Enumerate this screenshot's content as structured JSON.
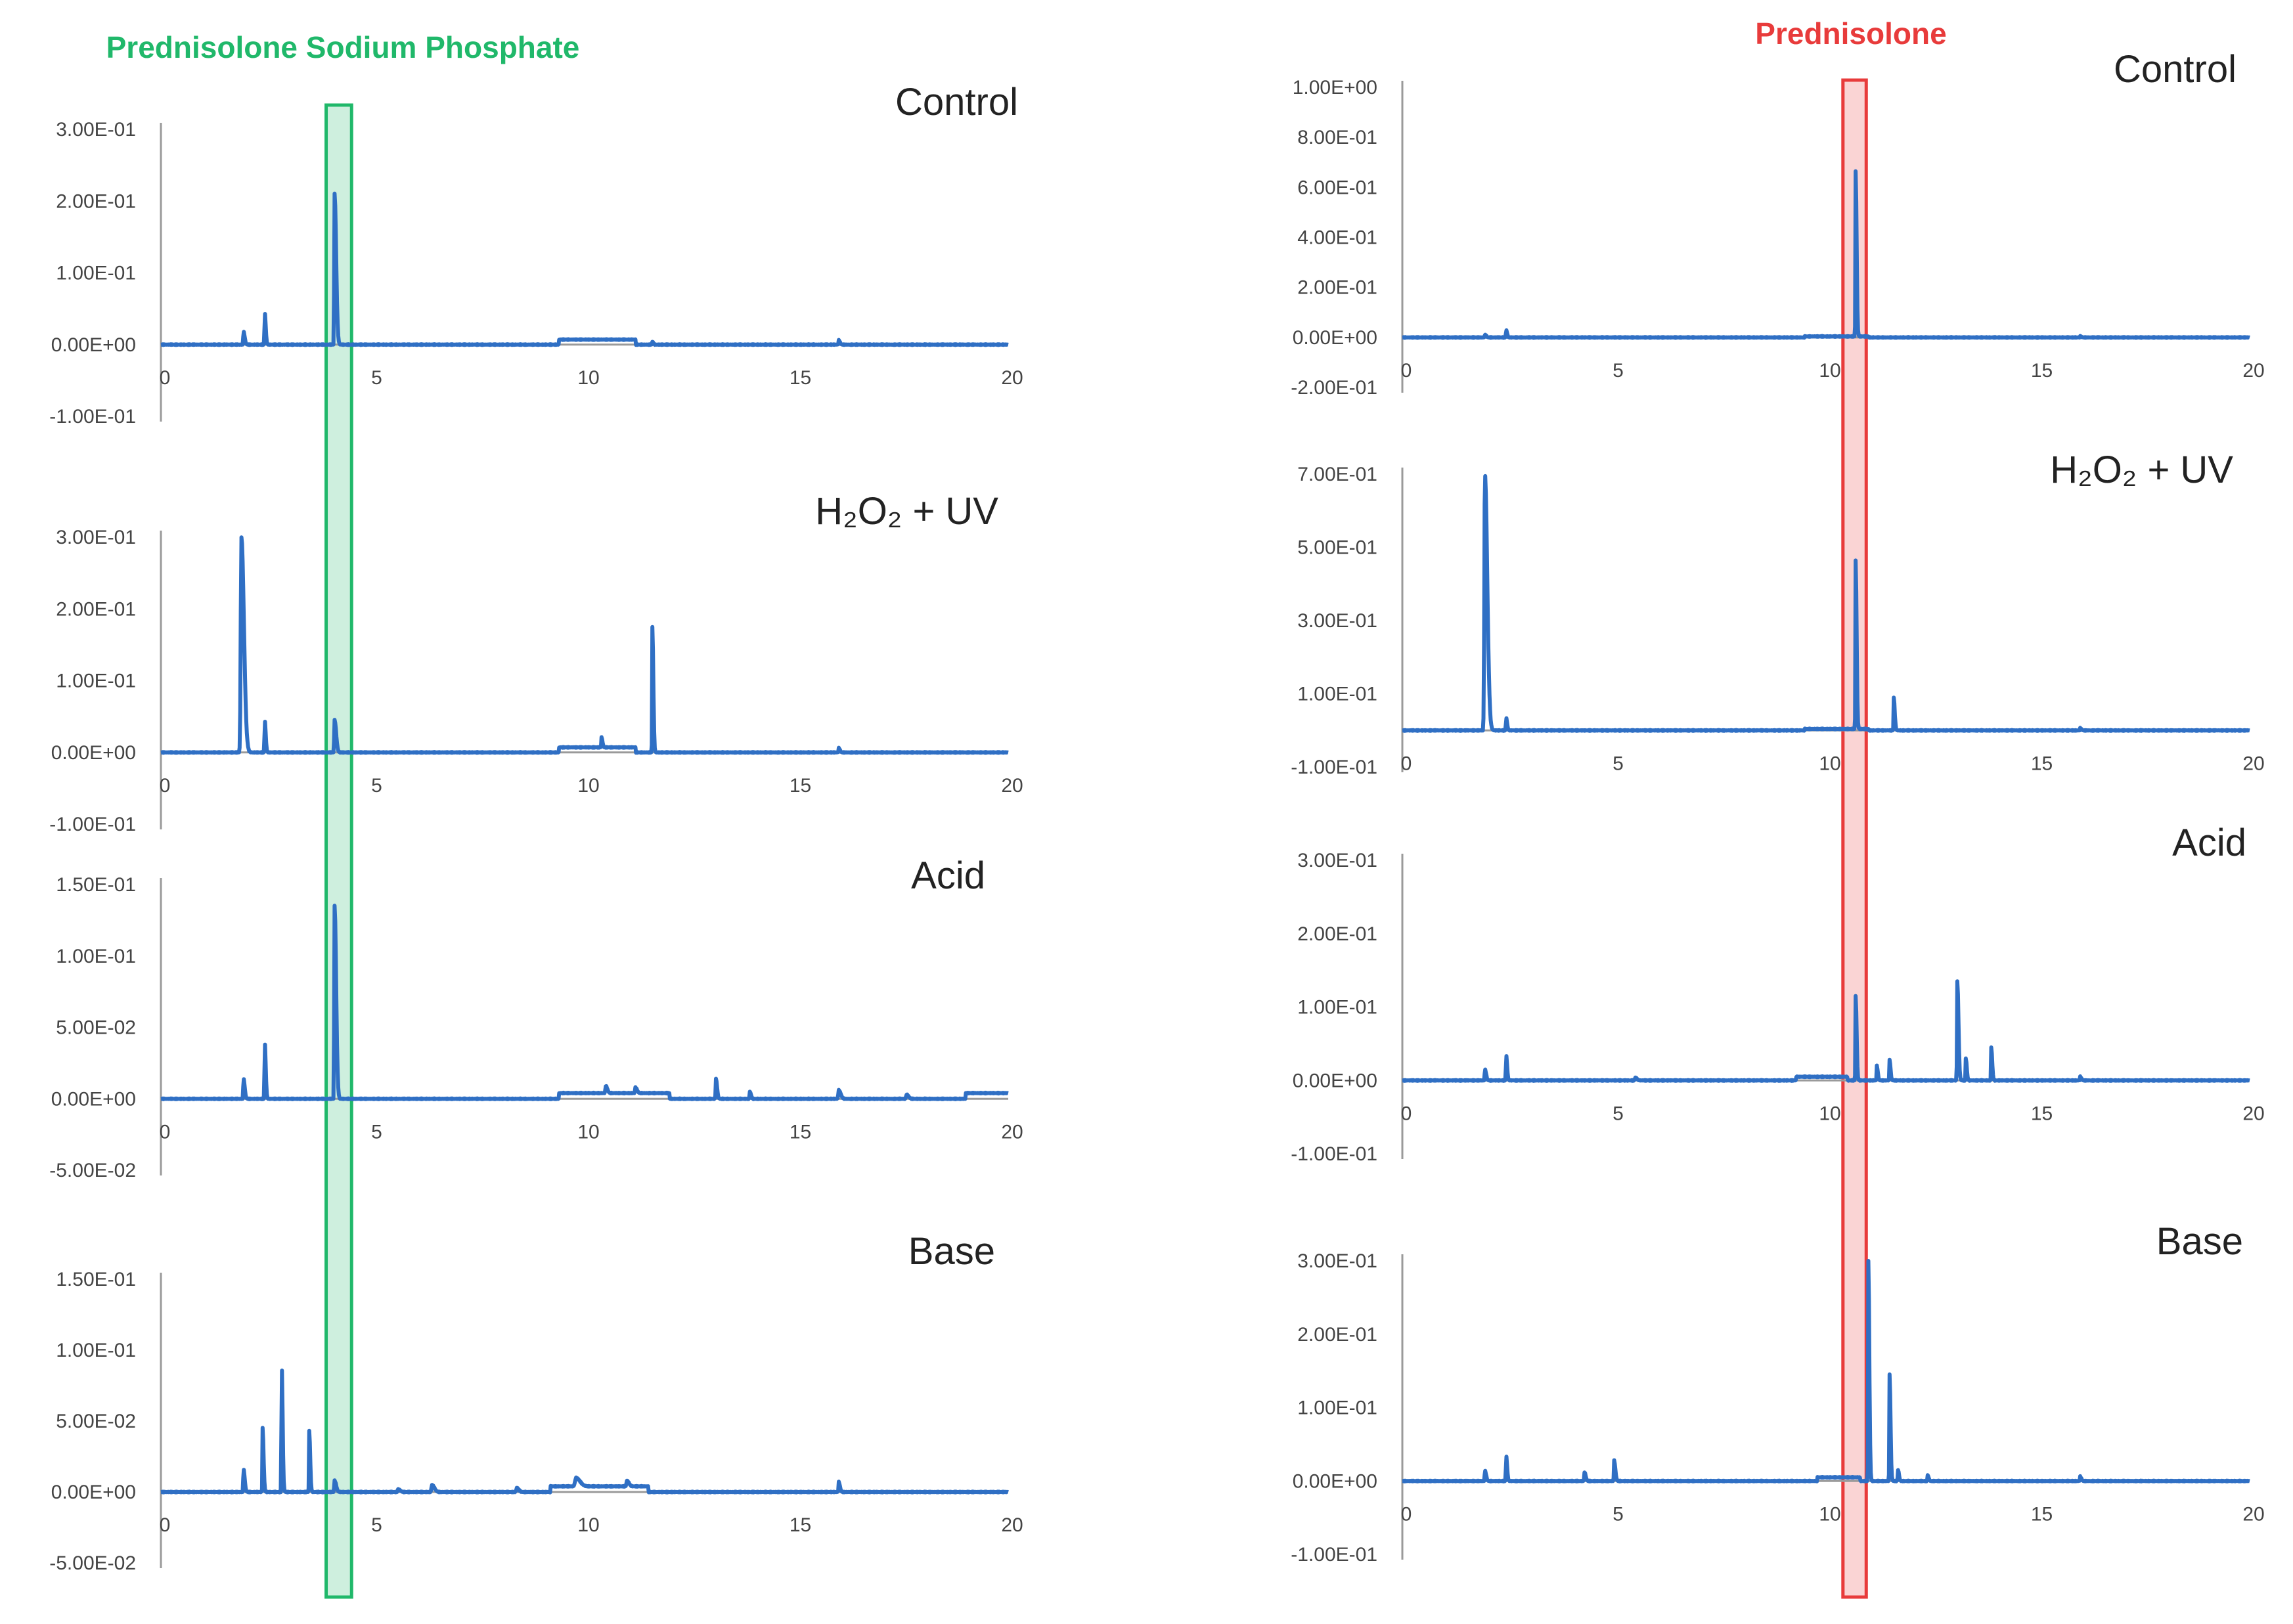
{
  "chart_data": [
    {
      "type": "line",
      "panel_group": "left",
      "group_title": "Prednisolone Sodium Phosphate",
      "title": "Control",
      "xlim": [
        0,
        20
      ],
      "xticks": [
        0,
        5,
        10,
        15,
        20
      ],
      "ylim": [
        -0.1,
        0.3
      ],
      "yticks": [
        "3.00E-01",
        "2.00E-01",
        "1.00E-01",
        "0.00E+00",
        "-1.00E-01"
      ],
      "ytick_values": [
        0.3,
        0.2,
        0.1,
        0.0,
        -0.1
      ],
      "baseline": 0,
      "peaks": [
        [
          1.95,
          0.018,
          0.06
        ],
        [
          2.45,
          0.045,
          0.05
        ],
        [
          4.1,
          0.21,
          0.08
        ],
        [
          11.6,
          0.004,
          0.05
        ],
        [
          16.0,
          0.006,
          0.06
        ]
      ],
      "humps": [
        [
          9.4,
          11.2,
          0.007
        ]
      ]
    },
    {
      "type": "line",
      "panel_group": "left",
      "title": "H₂O₂ + UV",
      "xlim": [
        0,
        20
      ],
      "xticks": [
        0,
        5,
        10,
        15,
        20
      ],
      "ylim": [
        -0.1,
        0.3
      ],
      "yticks": [
        "3.00E-01",
        "2.00E-01",
        "1.00E-01",
        "0.00E+00",
        "-1.00E-01"
      ],
      "ytick_values": [
        0.3,
        0.2,
        0.1,
        0.0,
        -0.1
      ],
      "baseline": 0,
      "peaks": [
        [
          1.9,
          0.3,
          0.13
        ],
        [
          2.45,
          0.045,
          0.05
        ],
        [
          4.1,
          0.045,
          0.08
        ],
        [
          10.4,
          0.014,
          0.05
        ],
        [
          11.6,
          0.175,
          0.05
        ],
        [
          16.0,
          0.006,
          0.06
        ]
      ],
      "humps": [
        [
          9.4,
          11.2,
          0.007
        ]
      ]
    },
    {
      "type": "line",
      "panel_group": "left",
      "title": "Acid",
      "xlim": [
        0,
        20
      ],
      "xticks": [
        0,
        5,
        10,
        15,
        20
      ],
      "ylim": [
        -0.05,
        0.15
      ],
      "yticks": [
        "1.50E-01",
        "1.00E-01",
        "5.00E-02",
        "0.00E+00",
        "-5.00E-02"
      ],
      "ytick_values": [
        0.15,
        0.1,
        0.05,
        0.0,
        -0.05
      ],
      "baseline": 0,
      "peaks": [
        [
          1.95,
          0.014,
          0.06
        ],
        [
          2.45,
          0.04,
          0.05
        ],
        [
          4.1,
          0.135,
          0.08
        ],
        [
          10.5,
          0.005,
          0.08
        ],
        [
          11.2,
          0.004,
          0.08
        ],
        [
          13.1,
          0.014,
          0.06
        ],
        [
          13.9,
          0.005,
          0.06
        ],
        [
          16.0,
          0.006,
          0.1
        ],
        [
          17.6,
          0.003,
          0.1
        ]
      ],
      "humps": [
        [
          9.4,
          12.0,
          0.004
        ],
        [
          19.0,
          20.0,
          0.004
        ]
      ]
    },
    {
      "type": "line",
      "panel_group": "left",
      "title": "Base",
      "xlim": [
        0,
        20
      ],
      "xticks": [
        0,
        5,
        10,
        15,
        20
      ],
      "ylim": [
        -0.05,
        0.15
      ],
      "yticks": [
        "1.50E-01",
        "1.00E-01",
        "5.00E-02",
        "0.00E+00",
        "-5.00E-02"
      ],
      "ytick_values": [
        0.15,
        0.1,
        0.05,
        0.0,
        -0.05
      ],
      "baseline": 0,
      "peaks": [
        [
          1.95,
          0.016,
          0.06
        ],
        [
          2.4,
          0.045,
          0.05
        ],
        [
          2.85,
          0.09,
          0.05
        ],
        [
          3.5,
          0.043,
          0.05
        ],
        [
          4.1,
          0.008,
          0.08
        ],
        [
          5.6,
          0.002,
          0.1
        ],
        [
          6.4,
          0.005,
          0.12
        ],
        [
          8.4,
          0.003,
          0.1
        ],
        [
          9.8,
          0.006,
          0.2
        ],
        [
          11.0,
          0.004,
          0.1
        ],
        [
          16.0,
          0.007,
          0.06
        ]
      ],
      "humps": [
        [
          9.2,
          11.5,
          0.004
        ]
      ]
    },
    {
      "type": "line",
      "panel_group": "right",
      "group_title": "Prednisolone",
      "title": "Control",
      "xlim": [
        0,
        20
      ],
      "xticks": [
        0,
        5,
        10,
        15,
        20
      ],
      "ylim": [
        -0.2,
        1.0
      ],
      "yticks": [
        "1.00E+00",
        "8.00E-01",
        "6.00E-01",
        "4.00E-01",
        "2.00E-01",
        "0.00E+00",
        "-2.00E-01"
      ],
      "ytick_values": [
        1.0,
        0.8,
        0.6,
        0.4,
        0.2,
        0.0,
        -0.2
      ],
      "baseline": 0,
      "peaks": [
        [
          1.95,
          0.01,
          0.07
        ],
        [
          2.45,
          0.03,
          0.05
        ],
        [
          10.7,
          0.66,
          0.05
        ],
        [
          16.0,
          0.004,
          0.06
        ]
      ],
      "humps": [
        [
          9.5,
          11.0,
          0.004
        ]
      ]
    },
    {
      "type": "line",
      "panel_group": "right",
      "title": "H₂O₂ + UV",
      "xlim": [
        0,
        20
      ],
      "xticks": [
        0,
        5,
        10,
        15,
        20
      ],
      "ylim": [
        -0.1,
        0.7
      ],
      "yticks": [
        "7.00E-01",
        "5.00E-01",
        "3.00E-01",
        "1.00E-01",
        "-1.00E-01"
      ],
      "ytick_values": [
        0.7,
        0.5,
        0.3,
        0.1,
        -0.1
      ],
      "baseline": 0,
      "peaks": [
        [
          1.95,
          0.7,
          0.12
        ],
        [
          2.45,
          0.035,
          0.05
        ],
        [
          10.7,
          0.46,
          0.05
        ],
        [
          11.6,
          0.09,
          0.05
        ],
        [
          16.0,
          0.006,
          0.06
        ]
      ],
      "humps": [
        [
          9.5,
          11.0,
          0.004
        ]
      ]
    },
    {
      "type": "line",
      "panel_group": "right",
      "title": "Acid",
      "xlim": [
        0,
        20
      ],
      "xticks": [
        0,
        5,
        10,
        15,
        20
      ],
      "ylim": [
        -0.1,
        0.3
      ],
      "yticks": [
        "3.00E-01",
        "2.00E-01",
        "1.00E-01",
        "0.00E+00",
        "-1.00E-01"
      ],
      "ytick_values": [
        0.3,
        0.2,
        0.1,
        0.0,
        -0.1
      ],
      "baseline": 0,
      "peaks": [
        [
          1.95,
          0.015,
          0.06
        ],
        [
          2.45,
          0.035,
          0.05
        ],
        [
          5.5,
          0.004,
          0.08
        ],
        [
          10.7,
          0.115,
          0.05
        ],
        [
          11.2,
          0.02,
          0.05
        ],
        [
          11.5,
          0.028,
          0.05
        ],
        [
          13.1,
          0.135,
          0.06
        ],
        [
          13.3,
          0.03,
          0.05
        ],
        [
          13.9,
          0.045,
          0.05
        ],
        [
          16.0,
          0.005,
          0.06
        ]
      ],
      "humps": [
        [
          9.3,
          10.5,
          0.005
        ]
      ]
    },
    {
      "type": "line",
      "panel_group": "right",
      "title": "Base",
      "xlim": [
        0,
        20
      ],
      "xticks": [
        0,
        5,
        10,
        15,
        20
      ],
      "ylim": [
        -0.1,
        0.3
      ],
      "yticks": [
        "3.00E-01",
        "2.00E-01",
        "1.00E-01",
        "0.00E+00",
        "-1.00E-01"
      ],
      "ytick_values": [
        0.3,
        0.2,
        0.1,
        0.0,
        -0.1
      ],
      "baseline": 0,
      "peaks": [
        [
          1.95,
          0.014,
          0.06
        ],
        [
          2.45,
          0.035,
          0.05
        ],
        [
          4.3,
          0.012,
          0.06
        ],
        [
          5.0,
          0.028,
          0.06
        ],
        [
          11.0,
          0.3,
          0.05
        ],
        [
          11.5,
          0.145,
          0.05
        ],
        [
          11.7,
          0.015,
          0.05
        ],
        [
          12.4,
          0.008,
          0.05
        ],
        [
          16.0,
          0.006,
          0.06
        ]
      ],
      "humps": [
        [
          9.8,
          10.8,
          0.005
        ]
      ]
    }
  ],
  "highlights": {
    "left": {
      "label": "Prednisolone Sodium Phosphate",
      "color": "#20b86a",
      "x_range": [
        3.9,
        4.5
      ]
    },
    "right": {
      "label": "Prednisolone",
      "color": "#e83b3b",
      "x_range": [
        10.4,
        10.95
      ]
    }
  },
  "colors": {
    "trace": "#2f6fc4",
    "axis": "#9a9a9a"
  }
}
